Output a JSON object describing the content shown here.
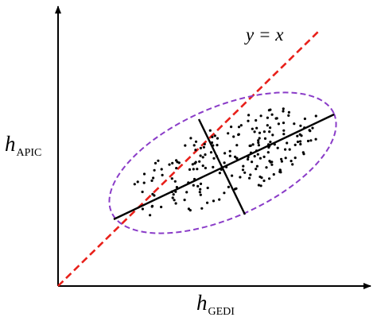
{
  "labels": {
    "y_axis": {
      "main": "h",
      "sub": "APIC"
    },
    "x_axis": {
      "main": "h",
      "sub": "GEDI"
    },
    "identity_line": "y = x"
  },
  "colors": {
    "axes": "#000000",
    "identity_line": "#e8201a",
    "ellipse": "#8a3cc8",
    "points": "#000000",
    "principal_axes": "#000000"
  },
  "diagram": {
    "elements": [
      "x-axis-arrow",
      "y-axis-arrow",
      "dashed-identity-line",
      "dashed-confidence-ellipse",
      "scatter-points",
      "major-axis-line",
      "minor-axis-line"
    ]
  }
}
